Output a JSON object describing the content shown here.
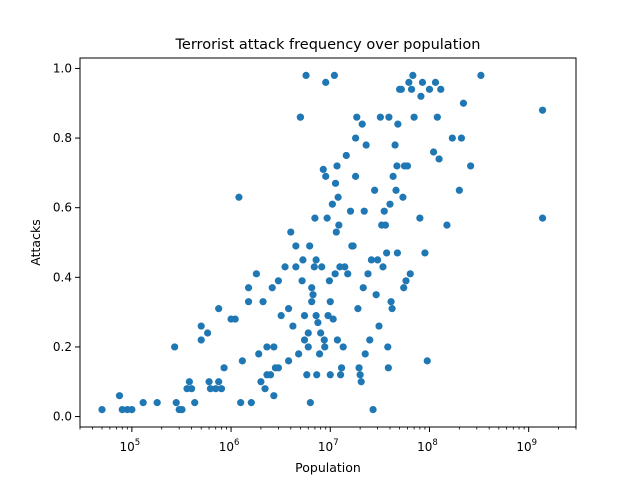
{
  "chart_data": {
    "type": "scatter",
    "title": "Terrorist attack frequency over population",
    "xlabel": "Population",
    "ylabel": "Attacks",
    "xscale": "log",
    "xlim": [
      30000,
      3000000000
    ],
    "ylim": [
      -0.03,
      1.03
    ],
    "grid": false,
    "marker_color": "#1f77b4",
    "xticks": [
      {
        "value": 100000,
        "base": "10",
        "exp": "5"
      },
      {
        "value": 1000000,
        "base": "10",
        "exp": "6"
      },
      {
        "value": 10000000,
        "base": "10",
        "exp": "7"
      },
      {
        "value": 100000000,
        "base": "10",
        "exp": "8"
      },
      {
        "value": 1000000000,
        "base": "10",
        "exp": "9"
      }
    ],
    "yticks": [
      {
        "value": 0.0,
        "label": "0.0"
      },
      {
        "value": 0.2,
        "label": "0.2"
      },
      {
        "value": 0.4,
        "label": "0.4"
      },
      {
        "value": 0.6,
        "label": "0.6"
      },
      {
        "value": 0.8,
        "label": "0.8"
      },
      {
        "value": 1.0,
        "label": "1.0"
      }
    ],
    "points": [
      [
        50000,
        0.02
      ],
      [
        75000,
        0.06
      ],
      [
        80000,
        0.02
      ],
      [
        90000,
        0.02
      ],
      [
        100000,
        0.02
      ],
      [
        130000,
        0.04
      ],
      [
        180000,
        0.04
      ],
      [
        270000,
        0.2
      ],
      [
        280000,
        0.04
      ],
      [
        300000,
        0.02
      ],
      [
        320000,
        0.02
      ],
      [
        360000,
        0.08
      ],
      [
        380000,
        0.1
      ],
      [
        400000,
        0.08
      ],
      [
        430000,
        0.04
      ],
      [
        500000,
        0.26
      ],
      [
        500000,
        0.22
      ],
      [
        580000,
        0.24
      ],
      [
        600000,
        0.1
      ],
      [
        620000,
        0.08
      ],
      [
        700000,
        0.08
      ],
      [
        750000,
        0.1
      ],
      [
        750000,
        0.31
      ],
      [
        800000,
        0.08
      ],
      [
        850000,
        0.14
      ],
      [
        1000000,
        0.28
      ],
      [
        1100000,
        0.28
      ],
      [
        1200000,
        0.63
      ],
      [
        1250000,
        0.04
      ],
      [
        1300000,
        0.16
      ],
      [
        1500000,
        0.37
      ],
      [
        1500000,
        0.33
      ],
      [
        1600000,
        0.04
      ],
      [
        1800000,
        0.41
      ],
      [
        1900000,
        0.18
      ],
      [
        2000000,
        0.1
      ],
      [
        2100000,
        0.33
      ],
      [
        2200000,
        0.08
      ],
      [
        2300000,
        0.12
      ],
      [
        2300000,
        0.2
      ],
      [
        2500000,
        0.12
      ],
      [
        2600000,
        0.37
      ],
      [
        2700000,
        0.2
      ],
      [
        2700000,
        0.06
      ],
      [
        2800000,
        0.14
      ],
      [
        3000000,
        0.39
      ],
      [
        3000000,
        0.14
      ],
      [
        3200000,
        0.29
      ],
      [
        3500000,
        0.43
      ],
      [
        3800000,
        0.31
      ],
      [
        3800000,
        0.16
      ],
      [
        4000000,
        0.53
      ],
      [
        4200000,
        0.26
      ],
      [
        4500000,
        0.49
      ],
      [
        4500000,
        0.43
      ],
      [
        4800000,
        0.18
      ],
      [
        5000000,
        0.86
      ],
      [
        5000000,
        0.86
      ],
      [
        5200000,
        0.39
      ],
      [
        5300000,
        0.45
      ],
      [
        5500000,
        0.29
      ],
      [
        5500000,
        0.22
      ],
      [
        5700000,
        0.98
      ],
      [
        5800000,
        0.12
      ],
      [
        6000000,
        0.24
      ],
      [
        6000000,
        0.2
      ],
      [
        6200000,
        0.49
      ],
      [
        6300000,
        0.04
      ],
      [
        6500000,
        0.37
      ],
      [
        6500000,
        0.33
      ],
      [
        6700000,
        0.35
      ],
      [
        6900000,
        0.43
      ],
      [
        7000000,
        0.57
      ],
      [
        7200000,
        0.45
      ],
      [
        7200000,
        0.29
      ],
      [
        7300000,
        0.12
      ],
      [
        7500000,
        0.27
      ],
      [
        7800000,
        0.18
      ],
      [
        8000000,
        0.24
      ],
      [
        8200000,
        0.43
      ],
      [
        8500000,
        0.71
      ],
      [
        8700000,
        0.22
      ],
      [
        8800000,
        0.2
      ],
      [
        9000000,
        0.69
      ],
      [
        9000000,
        0.96
      ],
      [
        9300000,
        0.57
      ],
      [
        9500000,
        0.29
      ],
      [
        9800000,
        0.39
      ],
      [
        10000000,
        0.33
      ],
      [
        10000000,
        0.12
      ],
      [
        10500000,
        0.61
      ],
      [
        10700000,
        0.28
      ],
      [
        11000000,
        0.98
      ],
      [
        11200000,
        0.41
      ],
      [
        11300000,
        0.67
      ],
      [
        11500000,
        0.53
      ],
      [
        11700000,
        0.72
      ],
      [
        11800000,
        0.22
      ],
      [
        12000000,
        0.63
      ],
      [
        12200000,
        0.55
      ],
      [
        12500000,
        0.43
      ],
      [
        12700000,
        0.12
      ],
      [
        13000000,
        0.14
      ],
      [
        13500000,
        0.2
      ],
      [
        14000000,
        0.43
      ],
      [
        14500000,
        0.75
      ],
      [
        15000000,
        0.41
      ],
      [
        16000000,
        0.59
      ],
      [
        16500000,
        0.49
      ],
      [
        17000000,
        0.49
      ],
      [
        18000000,
        0.69
      ],
      [
        18000000,
        0.8
      ],
      [
        18500000,
        0.86
      ],
      [
        19000000,
        0.31
      ],
      [
        19500000,
        0.14
      ],
      [
        20000000,
        0.12
      ],
      [
        20500000,
        0.1
      ],
      [
        21000000,
        0.84
      ],
      [
        21500000,
        0.37
      ],
      [
        22000000,
        0.59
      ],
      [
        22500000,
        0.18
      ],
      [
        23000000,
        0.78
      ],
      [
        24000000,
        0.41
      ],
      [
        25000000,
        0.22
      ],
      [
        26000000,
        0.45
      ],
      [
        27000000,
        0.02
      ],
      [
        28000000,
        0.65
      ],
      [
        29000000,
        0.35
      ],
      [
        30000000,
        0.45
      ],
      [
        31000000,
        0.26
      ],
      [
        32000000,
        0.86
      ],
      [
        33000000,
        0.55
      ],
      [
        34000000,
        0.43
      ],
      [
        35000000,
        0.59
      ],
      [
        36000000,
        0.55
      ],
      [
        37000000,
        0.47
      ],
      [
        38000000,
        0.2
      ],
      [
        38500000,
        0.14
      ],
      [
        39000000,
        0.86
      ],
      [
        40000000,
        0.61
      ],
      [
        41000000,
        0.33
      ],
      [
        42000000,
        0.31
      ],
      [
        43000000,
        0.69
      ],
      [
        45000000,
        0.78
      ],
      [
        46000000,
        0.65
      ],
      [
        47000000,
        0.72
      ],
      [
        47500000,
        0.47
      ],
      [
        48000000,
        0.84
      ],
      [
        50000000,
        0.94
      ],
      [
        52000000,
        0.94
      ],
      [
        54000000,
        0.63
      ],
      [
        55000000,
        0.37
      ],
      [
        56000000,
        0.72
      ],
      [
        58000000,
        0.39
      ],
      [
        60000000,
        0.72
      ],
      [
        62000000,
        0.96
      ],
      [
        64000000,
        0.41
      ],
      [
        66000000,
        0.94
      ],
      [
        68000000,
        0.98
      ],
      [
        70000000,
        0.86
      ],
      [
        80000000,
        0.57
      ],
      [
        82000000,
        0.92
      ],
      [
        85000000,
        0.96
      ],
      [
        90000000,
        0.47
      ],
      [
        95000000,
        0.16
      ],
      [
        100000000,
        0.94
      ],
      [
        110000000,
        0.76
      ],
      [
        115000000,
        0.96
      ],
      [
        120000000,
        0.86
      ],
      [
        125000000,
        0.74
      ],
      [
        130000000,
        0.94
      ],
      [
        150000000,
        0.55
      ],
      [
        170000000,
        0.8
      ],
      [
        200000000,
        0.65
      ],
      [
        210000000,
        0.8
      ],
      [
        220000000,
        0.9
      ],
      [
        260000000,
        0.72
      ],
      [
        330000000,
        0.98
      ],
      [
        1380000000,
        0.88
      ],
      [
        1380000000,
        0.57
      ]
    ]
  }
}
